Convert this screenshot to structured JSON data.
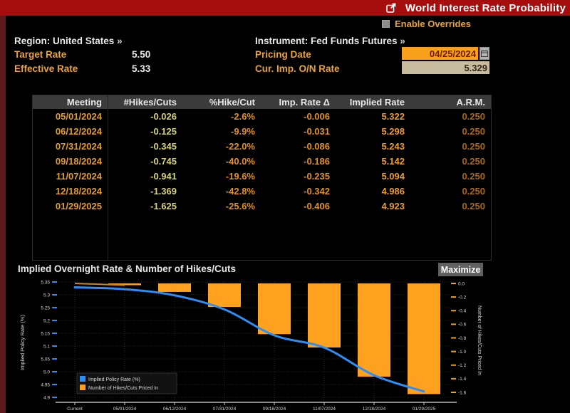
{
  "title_bar": {
    "title": "World Interest Rate Probability",
    "export_icon": "open-external-icon"
  },
  "overrides": {
    "label": "Enable Overrides",
    "checked": false
  },
  "info": {
    "region_label": "Region:",
    "region_value": "United States",
    "region_arrow": "»",
    "instrument_label": "Instrument:",
    "instrument_value": "Fed Funds Futures",
    "instrument_arrow": "»",
    "target_rate_label": "Target Rate",
    "target_rate_value": "5.50",
    "effective_rate_label": "Effective Rate",
    "effective_rate_value": "5.33",
    "pricing_date_label": "Pricing Date",
    "pricing_date_value": "04/25/2024",
    "cur_imp_label": "Cur. Imp. O/N Rate",
    "cur_imp_value": "5.329"
  },
  "table": {
    "columns": [
      "Meeting",
      "#Hikes/Cuts",
      "%Hike/Cut",
      "Imp. Rate Δ",
      "Implied Rate",
      "A.R.M."
    ],
    "rows": [
      [
        "05/01/2024",
        "-0.026",
        "-2.6%",
        "-0.006",
        "5.322",
        "0.250"
      ],
      [
        "06/12/2024",
        "-0.125",
        "-9.9%",
        "-0.031",
        "5.298",
        "0.250"
      ],
      [
        "07/31/2024",
        "-0.345",
        "-22.0%",
        "-0.086",
        "5.243",
        "0.250"
      ],
      [
        "09/18/2024",
        "-0.745",
        "-40.0%",
        "-0.186",
        "5.142",
        "0.250"
      ],
      [
        "11/07/2024",
        "-0.941",
        "-19.6%",
        "-0.235",
        "5.094",
        "0.250"
      ],
      [
        "12/18/2024",
        "-1.369",
        "-42.8%",
        "-0.342",
        "4.986",
        "0.250"
      ],
      [
        "01/29/2025",
        "-1.625",
        "-25.6%",
        "-0.406",
        "4.923",
        "0.250"
      ]
    ]
  },
  "chart_section": {
    "title": "Implied Overnight Rate & Number of Hikes/Cuts",
    "maximize_label": "Maximize"
  },
  "chart_data": {
    "type": "combo",
    "categories": [
      "Current",
      "05/01/2024",
      "06/12/2024",
      "07/31/2024",
      "09/18/2024",
      "11/07/2024",
      "12/18/2024",
      "01/29/2025"
    ],
    "series": [
      {
        "name": "Implied Policy Rate (%)",
        "type": "line",
        "axis": "left",
        "color": "#2f8ef5",
        "values": [
          5.329,
          5.322,
          5.298,
          5.243,
          5.142,
          5.094,
          4.986,
          4.923
        ]
      },
      {
        "name": "Number of Hikes/Cuts Priced In",
        "type": "bar",
        "axis": "right",
        "color": "#fea11e",
        "values": [
          0,
          -0.026,
          -0.125,
          -0.345,
          -0.745,
          -0.941,
          -1.369,
          -1.625
        ]
      }
    ],
    "left_axis": {
      "label": "Implied Policy Rate (%)",
      "min": 4.9,
      "max": 5.35,
      "step": 0.05,
      "tick_color": "#2f8ef5"
    },
    "right_axis": {
      "label": "Number of Hikes/Cuts Priced In",
      "min": -1.6,
      "max": 0.0,
      "step": 0.2,
      "tick_color": "#f59d0c"
    },
    "grid": true,
    "legend_position": "bottom-left"
  },
  "colors": {
    "titlebar_red": "#a60d0d",
    "frame_maroon": "#5e1a1a",
    "amber_label": "#e8a33d",
    "bar_orange": "#fea11e",
    "line_blue": "#2f8ef5",
    "grid": "#282828",
    "axis_text": "#d8d8d8",
    "legend_bg": "#121212"
  }
}
